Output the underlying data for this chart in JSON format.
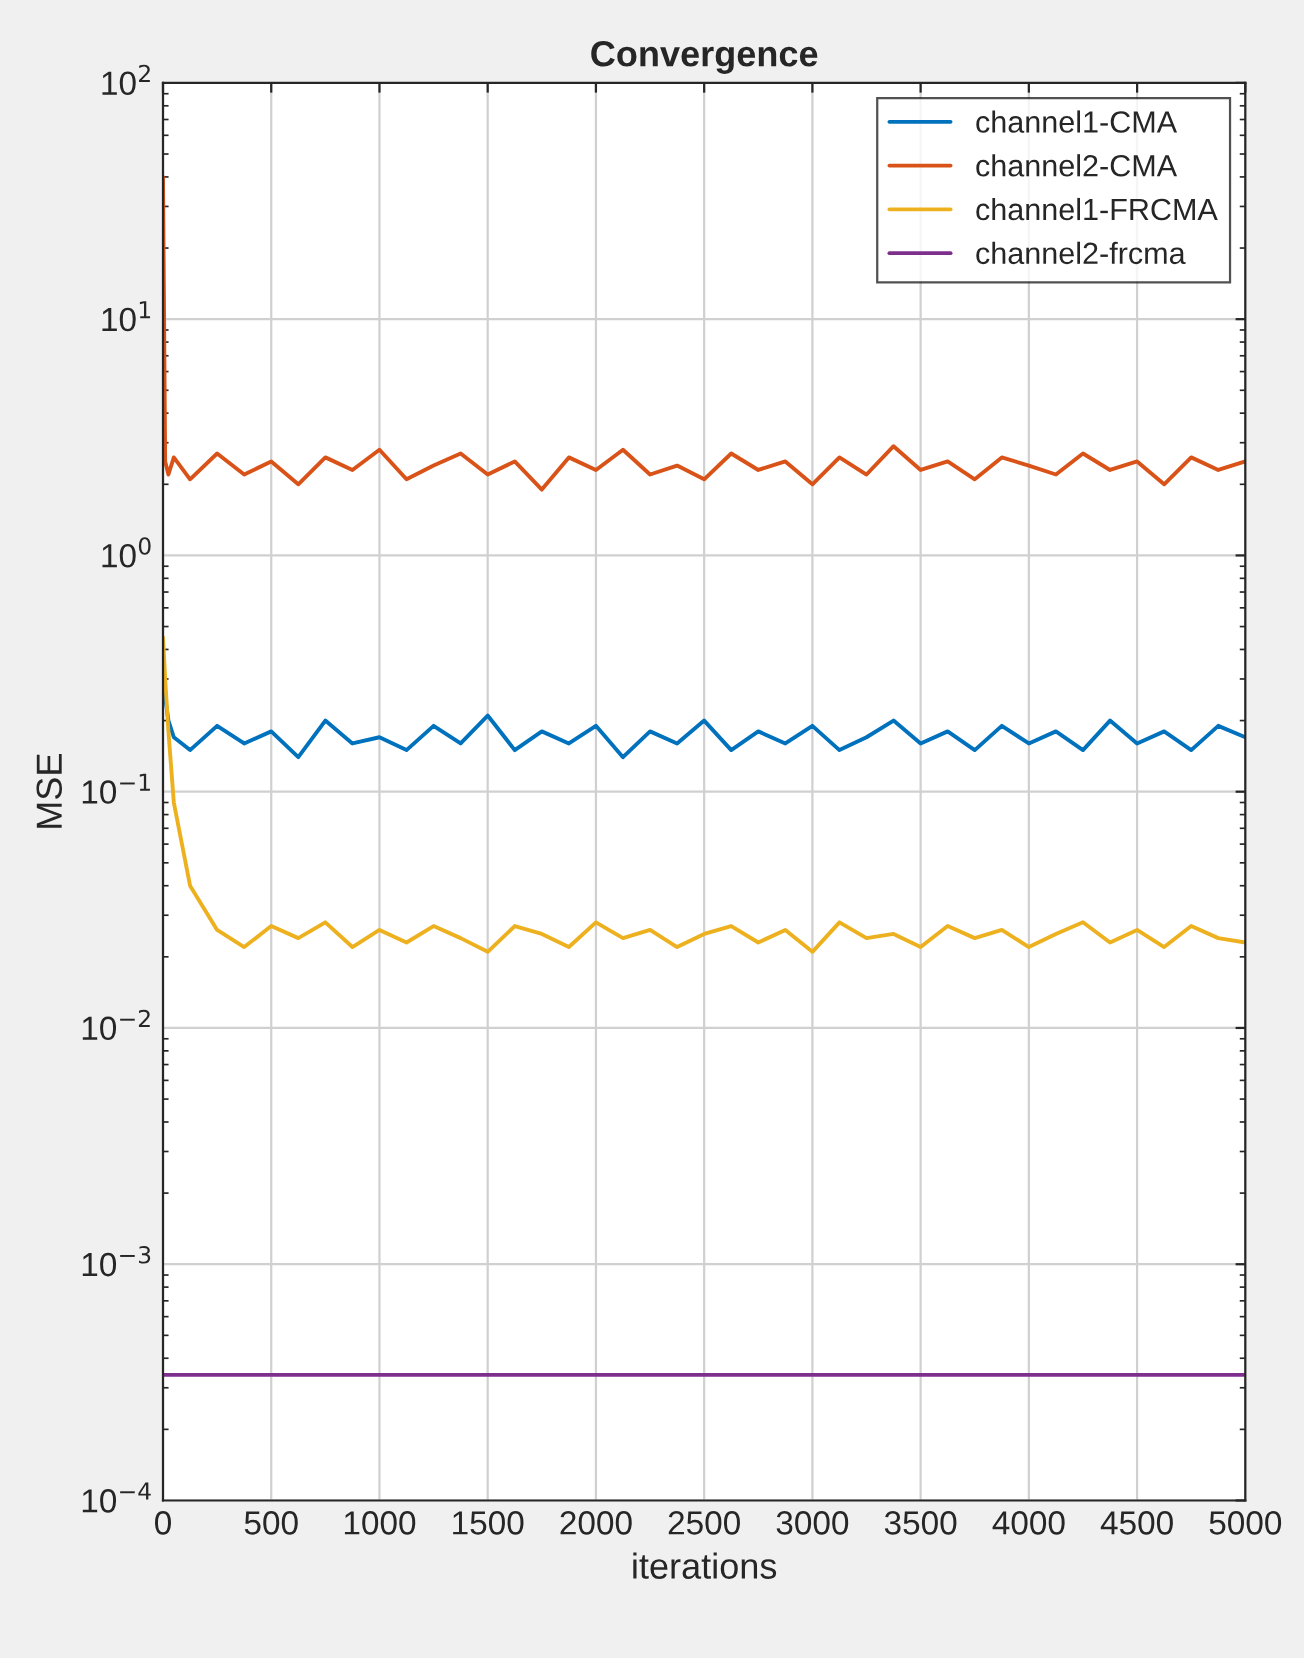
{
  "chart_data": {
    "type": "line",
    "title": "Convergence",
    "xlabel": "iterations",
    "ylabel": "MSE",
    "log": "y",
    "grid": true,
    "legend": "top right",
    "line_style": "solid",
    "marker": "none",
    "xlim": [
      0,
      5000
    ],
    "xticks": [
      0,
      500,
      1000,
      1500,
      2000,
      2500,
      3000,
      3500,
      4000,
      4500,
      5000
    ],
    "ylim": [
      0.0001,
      100
    ],
    "yticks": [
      {
        "value": 0.0001,
        "label": "10$^{−4}$"
      },
      {
        "value": 0.001,
        "label": "10$^{−3}$"
      },
      {
        "value": 0.01,
        "label": "10$^{−2}$"
      },
      {
        "value": 0.1,
        "label": "10$^{−1}$"
      },
      {
        "value": 1,
        "label": "10$^{0}$"
      },
      {
        "value": 10,
        "label": "10$^{1}$"
      },
      {
        "value": 100,
        "label": "10$^{2}$"
      }
    ],
    "x": [
      0,
      10,
      25,
      50,
      125,
      250,
      375,
      500,
      625,
      750,
      875,
      1000,
      1125,
      1250,
      1375,
      1500,
      1625,
      1750,
      1875,
      2000,
      2125,
      2250,
      2375,
      2500,
      2625,
      2750,
      2875,
      3000,
      3125,
      3250,
      3375,
      3500,
      3625,
      3750,
      3875,
      4000,
      4125,
      4250,
      4375,
      4500,
      4625,
      4750,
      4875,
      5000
    ],
    "series": [
      {
        "name": "channel1-CMA",
        "color": "#0072bd",
        "values": [
          0.3,
          0.25,
          0.2,
          0.17,
          0.15,
          0.19,
          0.16,
          0.18,
          0.14,
          0.2,
          0.16,
          0.17,
          0.15,
          0.19,
          0.16,
          0.21,
          0.15,
          0.18,
          0.16,
          0.19,
          0.14,
          0.18,
          0.16,
          0.2,
          0.15,
          0.18,
          0.16,
          0.19,
          0.15,
          0.17,
          0.2,
          0.16,
          0.18,
          0.15,
          0.19,
          0.16,
          0.18,
          0.15,
          0.2,
          0.16,
          0.18,
          0.15,
          0.19,
          0.17
        ]
      },
      {
        "name": "channel2-CMA",
        "color": "#d95319",
        "values": [
          40,
          2.5,
          2.2,
          2.6,
          2.1,
          2.7,
          2.2,
          2.5,
          2.0,
          2.6,
          2.3,
          2.8,
          2.1,
          2.4,
          2.7,
          2.2,
          2.5,
          1.9,
          2.6,
          2.3,
          2.8,
          2.2,
          2.4,
          2.1,
          2.7,
          2.3,
          2.5,
          2.0,
          2.6,
          2.2,
          2.9,
          2.3,
          2.5,
          2.1,
          2.6,
          2.4,
          2.2,
          2.7,
          2.3,
          2.5,
          2.0,
          2.6,
          2.3,
          2.5
        ]
      },
      {
        "name": "channel1-FRCMA",
        "color": "#edb120",
        "values": [
          0.45,
          0.3,
          0.18,
          0.09,
          0.04,
          0.026,
          0.022,
          0.027,
          0.024,
          0.028,
          0.022,
          0.026,
          0.023,
          0.027,
          0.024,
          0.021,
          0.027,
          0.025,
          0.022,
          0.028,
          0.024,
          0.026,
          0.022,
          0.025,
          0.027,
          0.023,
          0.026,
          0.021,
          0.028,
          0.024,
          0.025,
          0.022,
          0.027,
          0.024,
          0.026,
          0.022,
          0.025,
          0.028,
          0.023,
          0.026,
          0.022,
          0.027,
          0.024,
          0.023
        ]
      },
      {
        "name": "channel2-frcma",
        "color": "#7e2f8e",
        "x": [
          0,
          5000
        ],
        "values": [
          0.00034,
          0.00034
        ]
      }
    ]
  }
}
